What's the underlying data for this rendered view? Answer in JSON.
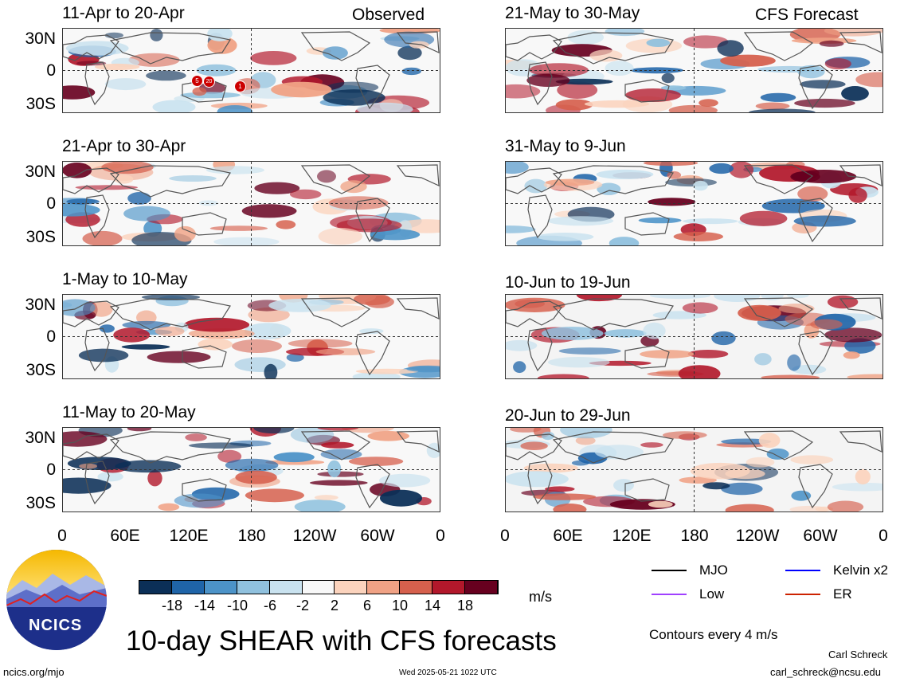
{
  "header": {
    "observed_label": "Observed",
    "forecast_label": "CFS Forecast"
  },
  "panels": [
    {
      "title": "11-Apr to 20-Apr",
      "kind": "observed"
    },
    {
      "title": "21-Apr to 30-Apr",
      "kind": "observed"
    },
    {
      "title": "1-May to 10-May",
      "kind": "observed"
    },
    {
      "title": "11-May to 20-May",
      "kind": "observed"
    },
    {
      "title": "21-May to 30-May",
      "kind": "forecast"
    },
    {
      "title": "31-May to 9-Jun",
      "kind": "forecast"
    },
    {
      "title": "10-Jun to 19-Jun",
      "kind": "forecast"
    },
    {
      "title": "20-Jun to 29-Jun",
      "kind": "forecast"
    }
  ],
  "axes": {
    "lat_ticks": [
      "30N",
      "0",
      "30S"
    ],
    "lon_ticks": [
      "0",
      "60E",
      "120E",
      "180",
      "120W",
      "60W",
      "0"
    ]
  },
  "storm_markers": [
    "5",
    "20",
    "1"
  ],
  "colorbar": {
    "unit": "m/s",
    "tick_labels": [
      "-18",
      "-14",
      "-10",
      "-6",
      "-2",
      "2",
      "6",
      "10",
      "14",
      "18"
    ],
    "colors": [
      "#0b2f57",
      "#1f64a8",
      "#4c93c8",
      "#90c1de",
      "#c9e2ef",
      "#f8f8f8",
      "#fbd3bd",
      "#f0a285",
      "#d6604d",
      "#b2182b",
      "#67001f"
    ]
  },
  "legend": {
    "items": [
      {
        "label": "MJO",
        "color": "#000000"
      },
      {
        "label": "Kelvin x2",
        "color": "#0000ff"
      },
      {
        "label": "Low",
        "color": "#a040ff"
      },
      {
        "label": "ER",
        "color": "#cc2200"
      }
    ],
    "contours_note": "Contours every 4 m/s"
  },
  "footer": {
    "main_title": "10-day SHEAR with CFS forecasts",
    "logo_text": "NCICS",
    "site": "ncics.org/mjo",
    "timestamp": "Wed 2025-05-21 1022 UTC",
    "author": "Carl Schreck",
    "email": "carl_schreck@ncsu.edu"
  }
}
